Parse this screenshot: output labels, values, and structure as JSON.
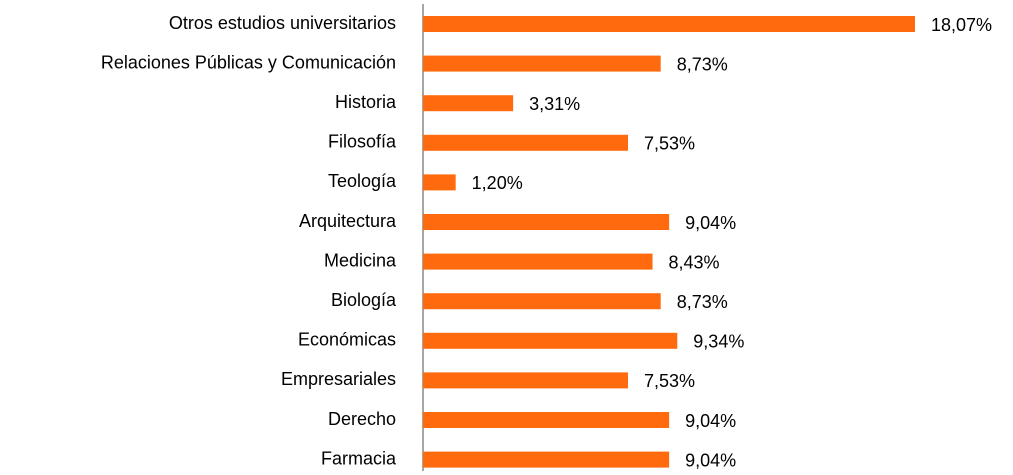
{
  "chart_data": {
    "type": "hbar",
    "categories": [
      "Otros estudios universitarios",
      "Relaciones Públicas y Comunicación",
      "Historia",
      "Filosofía",
      "Teología",
      "Arquitectura",
      "Medicina",
      "Biología",
      "Económicas",
      "Empresariales",
      "Derecho",
      "Farmacia"
    ],
    "values": [
      18.07,
      8.73,
      3.31,
      7.53,
      1.2,
      9.04,
      8.43,
      8.73,
      9.34,
      7.53,
      9.04,
      9.04
    ],
    "value_labels": [
      "18,07%",
      "8,73%",
      "3,31%",
      "7,53%",
      "1,20%",
      "9,04%",
      "8,43%",
      "8,73%",
      "9,34%",
      "7,53%",
      "9,04%",
      "9,04%"
    ],
    "color": "#ff6a0e"
  }
}
